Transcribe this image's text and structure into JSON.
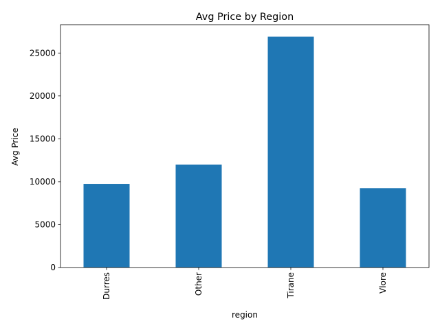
{
  "chart_data": {
    "type": "bar",
    "title": "Avg Price by Region",
    "xlabel": "region",
    "ylabel": "Avg Price",
    "categories": [
      "Durres",
      "Other",
      "Tirane",
      "Vlore"
    ],
    "values": [
      9750,
      12000,
      26900,
      9250
    ],
    "ylim": [
      0,
      28300
    ],
    "yticks": [
      0,
      5000,
      10000,
      15000,
      20000,
      25000
    ],
    "ytick_labels": [
      "0",
      "5000",
      "10000",
      "15000",
      "20000",
      "25000"
    ],
    "grid": false,
    "legend": "none",
    "bar_color": "#1f77b4"
  }
}
